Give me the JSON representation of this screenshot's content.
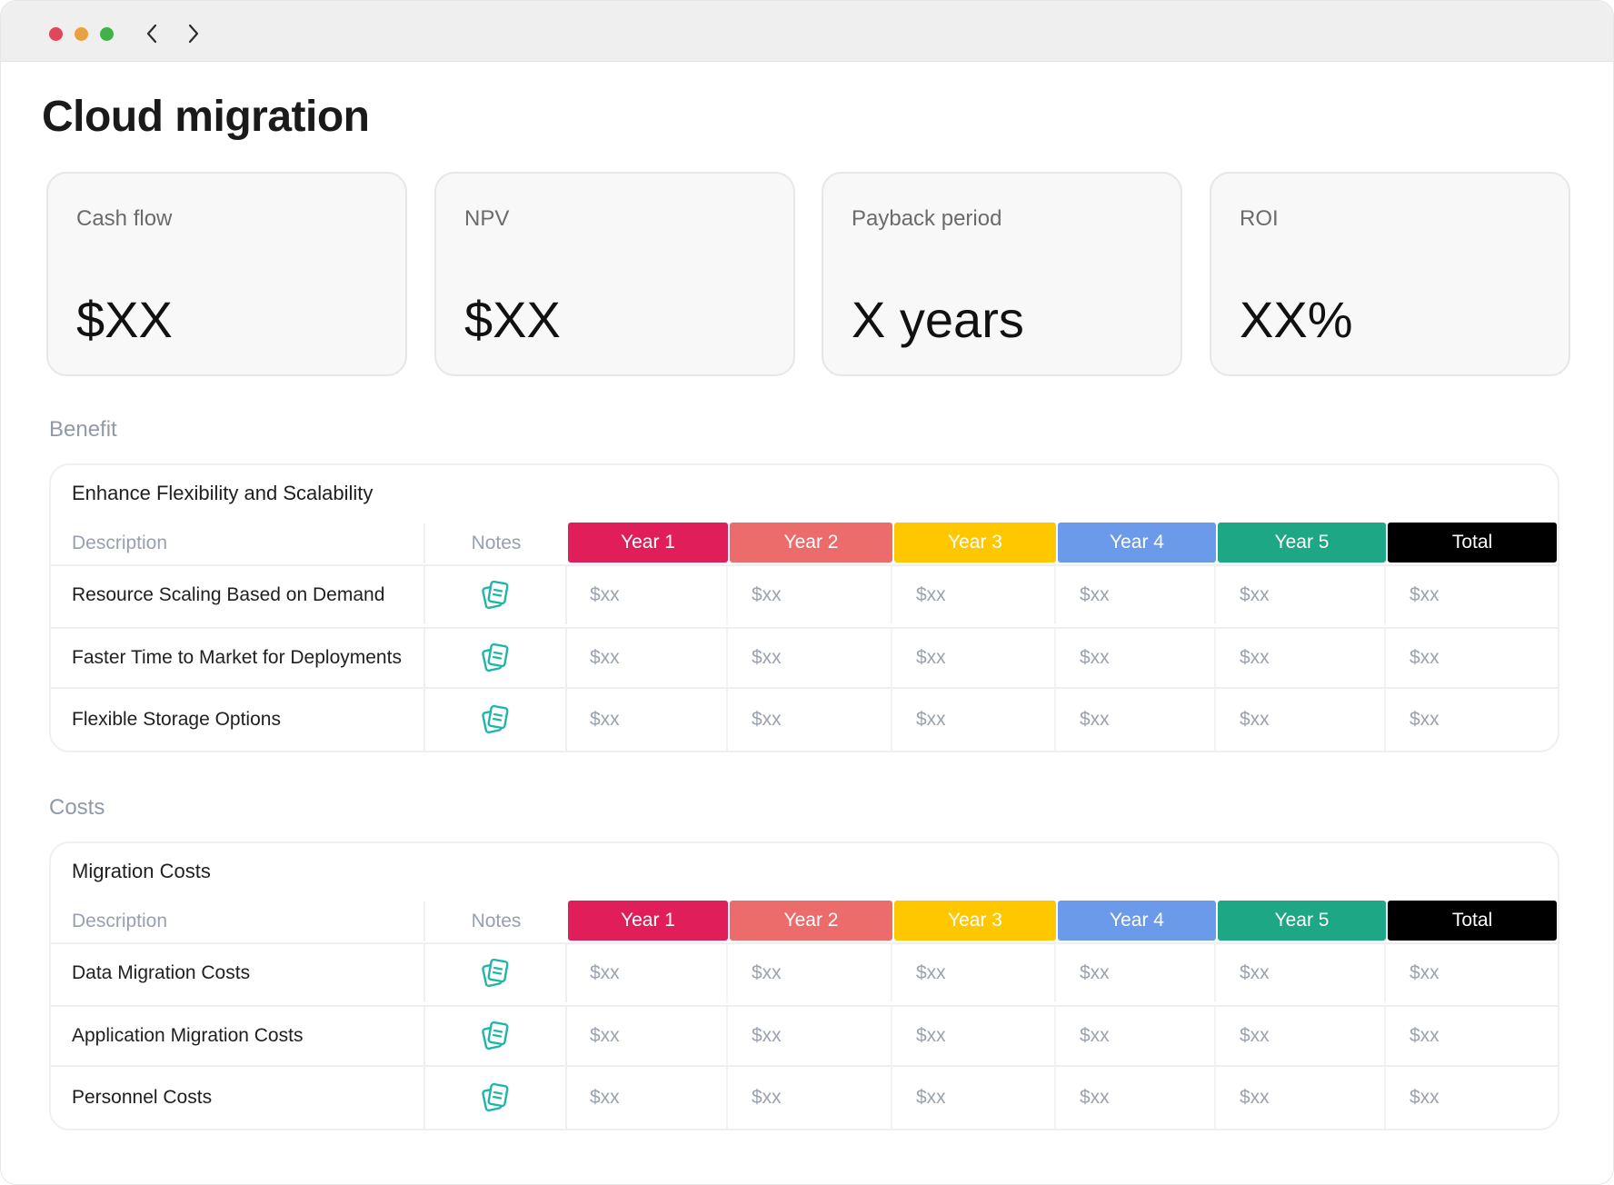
{
  "window": {
    "controls": {
      "close_color": "#e0475c",
      "minimize_color": "#e9a03f",
      "maximize_color": "#3fb24a"
    },
    "nav": {
      "back_icon": "chevron-left-icon",
      "forward_icon": "chevron-right-icon"
    }
  },
  "page": {
    "title": "Cloud migration"
  },
  "kpis": [
    {
      "label": "Cash flow",
      "value": "$XX"
    },
    {
      "label": "NPV",
      "value": "$XX"
    },
    {
      "label": "Payback period",
      "value": "X years"
    },
    {
      "label": "ROI",
      "value": "XX%"
    }
  ],
  "year_colors": [
    "#e01e5a",
    "#ec6b6b",
    "#ffc700",
    "#6c9aea",
    "#1da784",
    "#000000"
  ],
  "benefit": {
    "section_label": "Benefit",
    "table": {
      "title": "Enhance Flexibility and Scalability",
      "headers": {
        "description": "Description",
        "notes": "Notes",
        "years": [
          "Year 1",
          "Year 2",
          "Year 3",
          "Year 4",
          "Year 5",
          "Total"
        ]
      },
      "rows": [
        {
          "description": "Resource Scaling Based on Demand",
          "values": [
            "$xx",
            "$xx",
            "$xx",
            "$xx",
            "$xx",
            "$xx"
          ]
        },
        {
          "description": "Faster Time to Market for Deployments",
          "values": [
            "$xx",
            "$xx",
            "$xx",
            "$xx",
            "$xx",
            "$xx"
          ]
        },
        {
          "description": "Flexible Storage Options",
          "values": [
            "$xx",
            "$xx",
            "$xx",
            "$xx",
            "$xx",
            "$xx"
          ]
        }
      ]
    }
  },
  "costs": {
    "section_label": "Costs",
    "table": {
      "title": "Migration Costs",
      "headers": {
        "description": "Description",
        "notes": "Notes",
        "years": [
          "Year 1",
          "Year 2",
          "Year 3",
          "Year 4",
          "Year 5",
          "Total"
        ]
      },
      "rows": [
        {
          "description": "Data Migration Costs",
          "values": [
            "$xx",
            "$xx",
            "$xx",
            "$xx",
            "$xx",
            "$xx"
          ]
        },
        {
          "description": "Application Migration Costs",
          "values": [
            "$xx",
            "$xx",
            "$xx",
            "$xx",
            "$xx",
            "$xx"
          ]
        },
        {
          "description": "Personnel Costs",
          "values": [
            "$xx",
            "$xx",
            "$xx",
            "$xx",
            "$xx",
            "$xx"
          ]
        }
      ]
    }
  },
  "notes_icon": {
    "name": "notes-icon",
    "color": "#1fb5a8"
  }
}
